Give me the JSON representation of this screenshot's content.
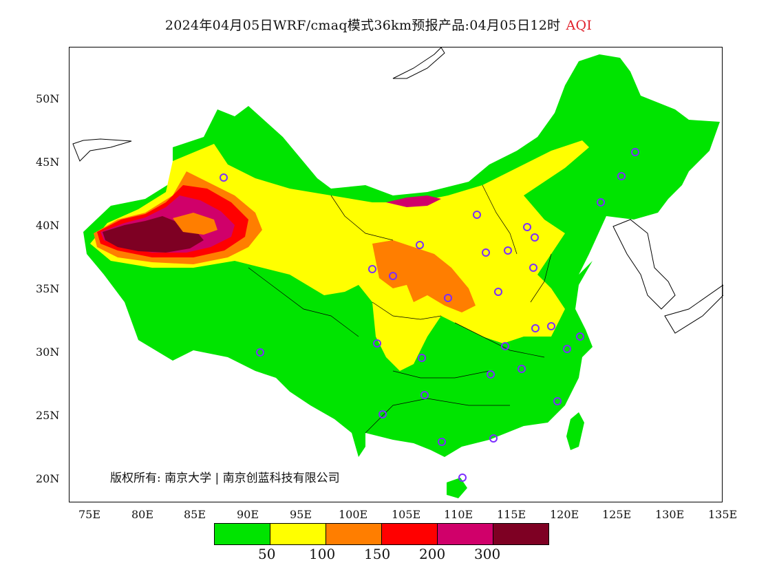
{
  "title": {
    "text": "2024年04月05日WRF/cmaq模式36km预报产品:04月05日12时",
    "variable": "AQI",
    "variable_color": "#e0202a"
  },
  "axes": {
    "lat_labels": [
      "50N",
      "45N",
      "40N",
      "35N",
      "30N",
      "25N",
      "20N"
    ],
    "lon_labels": [
      "75E",
      "80E",
      "85E",
      "90E",
      "95E",
      "100E",
      "105E",
      "110E",
      "115E",
      "120E",
      "125E",
      "130E",
      "135E"
    ]
  },
  "legend": {
    "colors": [
      "#00e400",
      "#ffff00",
      "#ff7e00",
      "#ff0000",
      "#d0006a",
      "#7e0023"
    ],
    "breaks": [
      "50",
      "100",
      "150",
      "200",
      "300"
    ]
  },
  "copyright": "版权所有: 南京大学 | 南京创蓝科技有限公司",
  "colors": {
    "good": "#00e400",
    "moderate": "#ffff00",
    "usg": "#ff7e00",
    "unhealthy": "#ff0000",
    "very_unhealthy": "#d0006a",
    "hazardous": "#7e0023",
    "station_marker": "#7b2cff"
  }
}
